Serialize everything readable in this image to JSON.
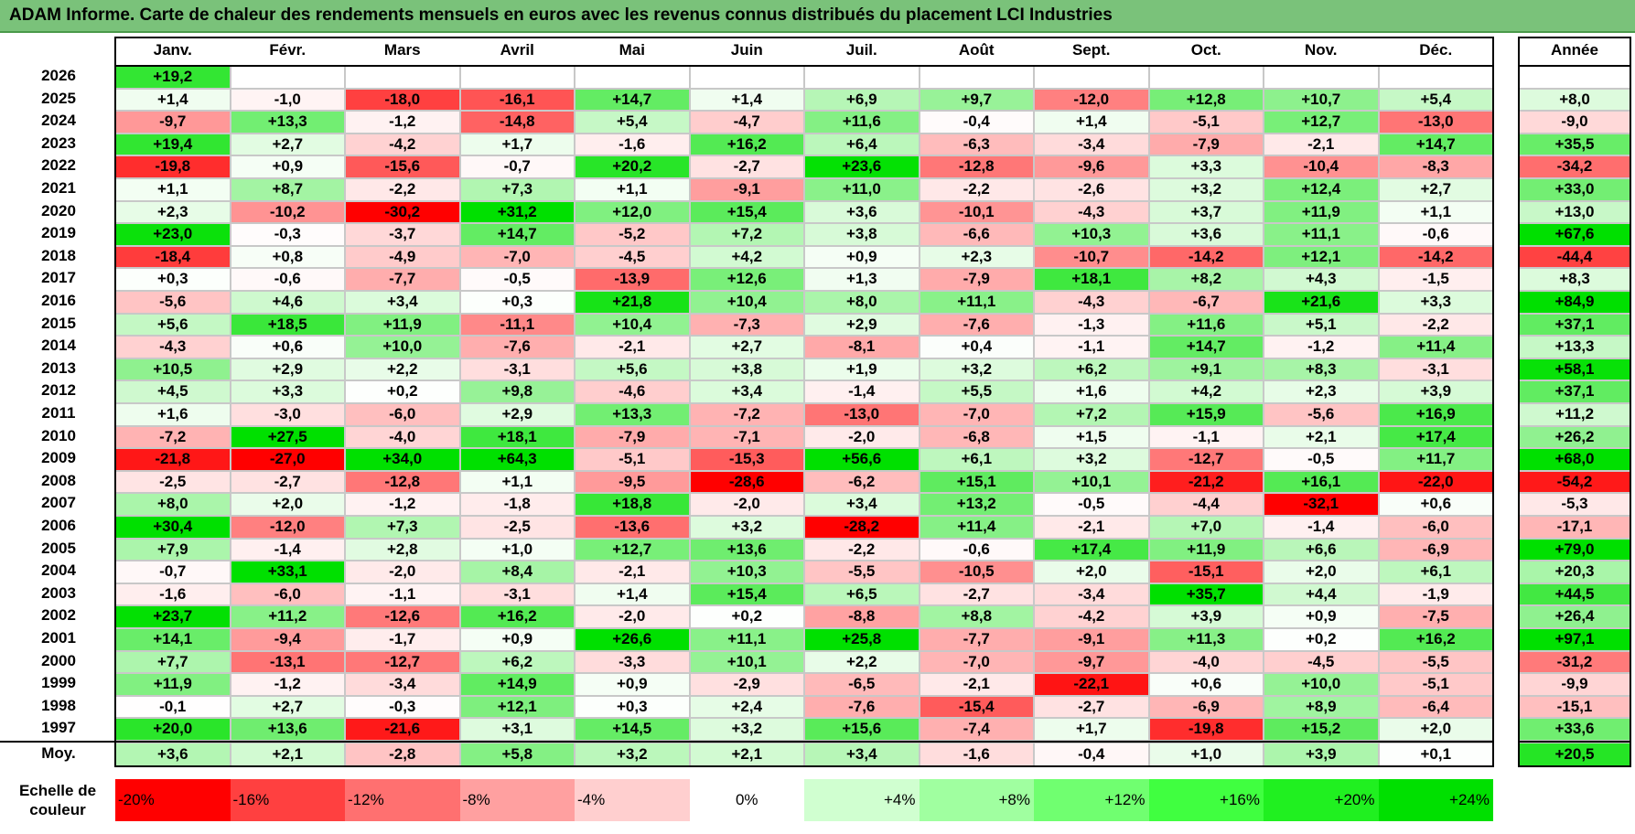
{
  "title": "ADAM Informe. Carte de chaleur des rendements mensuels en euros avec les revenus connus distribués du placement LCI Industries",
  "chart_data": {
    "type": "heatmap",
    "months": [
      "Janv.",
      "Févr.",
      "Mars",
      "Avril",
      "Mai",
      "Juin",
      "Juil.",
      "Août",
      "Sept.",
      "Oct.",
      "Nov.",
      "Déc."
    ],
    "year_header": "Année",
    "rows": [
      {
        "year": "2026",
        "months": [
          "+19,2",
          "",
          "",
          "",
          "",
          "",
          "",
          "",
          "",
          "",
          "",
          ""
        ],
        "annual": ""
      },
      {
        "year": "2025",
        "months": [
          "+1,4",
          "-1,0",
          "-18,0",
          "-16,1",
          "+14,7",
          "+1,4",
          "+6,9",
          "+9,7",
          "-12,0",
          "+12,8",
          "+10,7",
          "+5,4"
        ],
        "annual": "+8,0"
      },
      {
        "year": "2024",
        "months": [
          "-9,7",
          "+13,3",
          "-1,2",
          "-14,8",
          "+5,4",
          "-4,7",
          "+11,6",
          "-0,4",
          "+1,4",
          "-5,1",
          "+12,7",
          "-13,0"
        ],
        "annual": "-9,0"
      },
      {
        "year": "2023",
        "months": [
          "+19,4",
          "+2,7",
          "-4,2",
          "+1,7",
          "-1,6",
          "+16,2",
          "+6,4",
          "-6,3",
          "-3,4",
          "-7,9",
          "-2,1",
          "+14,7"
        ],
        "annual": "+35,5"
      },
      {
        "year": "2022",
        "months": [
          "-19,8",
          "+0,9",
          "-15,6",
          "-0,7",
          "+20,2",
          "-2,7",
          "+23,6",
          "-12,8",
          "-9,6",
          "+3,3",
          "-10,4",
          "-8,3"
        ],
        "annual": "-34,2"
      },
      {
        "year": "2021",
        "months": [
          "+1,1",
          "+8,7",
          "-2,2",
          "+7,3",
          "+1,1",
          "-9,1",
          "+11,0",
          "-2,2",
          "-2,6",
          "+3,2",
          "+12,4",
          "+2,7"
        ],
        "annual": "+33,0"
      },
      {
        "year": "2020",
        "months": [
          "+2,3",
          "-10,2",
          "-30,2",
          "+31,2",
          "+12,0",
          "+15,4",
          "+3,6",
          "-10,1",
          "-4,3",
          "+3,7",
          "+11,9",
          "+1,1"
        ],
        "annual": "+13,0"
      },
      {
        "year": "2019",
        "months": [
          "+23,0",
          "-0,3",
          "-3,7",
          "+14,7",
          "-5,2",
          "+7,2",
          "+3,8",
          "-6,6",
          "+10,3",
          "+3,6",
          "+11,1",
          "-0,6"
        ],
        "annual": "+67,6"
      },
      {
        "year": "2018",
        "months": [
          "-18,4",
          "+0,8",
          "-4,9",
          "-7,0",
          "-4,5",
          "+4,2",
          "+0,9",
          "+2,3",
          "-10,7",
          "-14,2",
          "+12,1",
          "-14,2"
        ],
        "annual": "-44,4"
      },
      {
        "year": "2017",
        "months": [
          "+0,3",
          "-0,6",
          "-7,7",
          "-0,5",
          "-13,9",
          "+12,6",
          "+1,3",
          "-7,9",
          "+18,1",
          "+8,2",
          "+4,3",
          "-1,5"
        ],
        "annual": "+8,3"
      },
      {
        "year": "2016",
        "months": [
          "-5,6",
          "+4,6",
          "+3,4",
          "+0,3",
          "+21,8",
          "+10,4",
          "+8,0",
          "+11,1",
          "-4,3",
          "-6,7",
          "+21,6",
          "+3,3"
        ],
        "annual": "+84,9"
      },
      {
        "year": "2015",
        "months": [
          "+5,6",
          "+18,5",
          "+11,9",
          "-11,1",
          "+10,4",
          "-7,3",
          "+2,9",
          "-7,6",
          "-1,3",
          "+11,6",
          "+5,1",
          "-2,2"
        ],
        "annual": "+37,1"
      },
      {
        "year": "2014",
        "months": [
          "-4,3",
          "+0,6",
          "+10,0",
          "-7,6",
          "-2,1",
          "+2,7",
          "-8,1",
          "+0,4",
          "-1,1",
          "+14,7",
          "-1,2",
          "+11,4"
        ],
        "annual": "+13,3"
      },
      {
        "year": "2013",
        "months": [
          "+10,5",
          "+2,9",
          "+2,2",
          "-3,1",
          "+5,6",
          "+3,8",
          "+1,9",
          "+3,2",
          "+6,2",
          "+9,1",
          "+8,3",
          "-3,1"
        ],
        "annual": "+58,1"
      },
      {
        "year": "2012",
        "months": [
          "+4,5",
          "+3,3",
          "+0,2",
          "+9,8",
          "-4,6",
          "+3,4",
          "-1,4",
          "+5,5",
          "+1,6",
          "+4,2",
          "+2,3",
          "+3,9"
        ],
        "annual": "+37,1"
      },
      {
        "year": "2011",
        "months": [
          "+1,6",
          "-3,0",
          "-6,0",
          "+2,9",
          "+13,3",
          "-7,2",
          "-13,0",
          "-7,0",
          "+7,2",
          "+15,9",
          "-5,6",
          "+16,9"
        ],
        "annual": "+11,2"
      },
      {
        "year": "2010",
        "months": [
          "-7,2",
          "+27,5",
          "-4,0",
          "+18,1",
          "-7,9",
          "-7,1",
          "-2,0",
          "-6,8",
          "+1,5",
          "-1,1",
          "+2,1",
          "+17,4"
        ],
        "annual": "+26,2"
      },
      {
        "year": "2009",
        "months": [
          "-21,8",
          "-27,0",
          "+34,0",
          "+64,3",
          "-5,1",
          "-15,3",
          "+56,6",
          "+6,1",
          "+3,2",
          "-12,7",
          "-0,5",
          "+11,7"
        ],
        "annual": "+68,0"
      },
      {
        "year": "2008",
        "months": [
          "-2,5",
          "-2,7",
          "-12,8",
          "+1,1",
          "-9,5",
          "-28,6",
          "-6,2",
          "+15,1",
          "+10,1",
          "-21,2",
          "+16,1",
          "-22,0"
        ],
        "annual": "-54,2"
      },
      {
        "year": "2007",
        "months": [
          "+8,0",
          "+2,0",
          "-1,2",
          "-1,8",
          "+18,8",
          "-2,0",
          "+3,4",
          "+13,2",
          "-0,5",
          "-4,4",
          "-32,1",
          "+0,6"
        ],
        "annual": "-5,3"
      },
      {
        "year": "2006",
        "months": [
          "+30,4",
          "-12,0",
          "+7,3",
          "-2,5",
          "-13,6",
          "+3,2",
          "-28,2",
          "+11,4",
          "-2,1",
          "+7,0",
          "-1,4",
          "-6,0"
        ],
        "annual": "-17,1"
      },
      {
        "year": "2005",
        "months": [
          "+7,9",
          "-1,4",
          "+2,8",
          "+1,0",
          "+12,7",
          "+13,6",
          "-2,2",
          "-0,6",
          "+17,4",
          "+11,9",
          "+6,6",
          "-6,9"
        ],
        "annual": "+79,0"
      },
      {
        "year": "2004",
        "months": [
          "-0,7",
          "+33,1",
          "-2,0",
          "+8,4",
          "-2,1",
          "+10,3",
          "-5,5",
          "-10,5",
          "+2,0",
          "-15,1",
          "+2,0",
          "+6,1"
        ],
        "annual": "+20,3"
      },
      {
        "year": "2003",
        "months": [
          "-1,6",
          "-6,0",
          "-1,1",
          "-3,1",
          "+1,4",
          "+15,4",
          "+6,5",
          "-2,7",
          "-3,4",
          "+35,7",
          "+4,4",
          "-1,9"
        ],
        "annual": "+44,5"
      },
      {
        "year": "2002",
        "months": [
          "+23,7",
          "+11,2",
          "-12,6",
          "+16,2",
          "-2,0",
          "+0,2",
          "-8,8",
          "+8,8",
          "-4,2",
          "+3,9",
          "+0,9",
          "-7,5"
        ],
        "annual": "+26,4"
      },
      {
        "year": "2001",
        "months": [
          "+14,1",
          "-9,4",
          "-1,7",
          "+0,9",
          "+26,6",
          "+11,1",
          "+25,8",
          "-7,7",
          "-9,1",
          "+11,3",
          "+0,2",
          "+16,2"
        ],
        "annual": "+97,1"
      },
      {
        "year": "2000",
        "months": [
          "+7,7",
          "-13,1",
          "-12,7",
          "+6,2",
          "-3,3",
          "+10,1",
          "+2,2",
          "-7,0",
          "-9,7",
          "-4,0",
          "-4,5",
          "-5,5"
        ],
        "annual": "-31,2"
      },
      {
        "year": "1999",
        "months": [
          "+11,9",
          "-1,2",
          "-3,4",
          "+14,9",
          "+0,9",
          "-2,9",
          "-6,5",
          "-2,1",
          "-22,1",
          "+0,6",
          "+10,0",
          "-5,1"
        ],
        "annual": "-9,9"
      },
      {
        "year": "1998",
        "months": [
          "-0,1",
          "+2,7",
          "-0,3",
          "+12,1",
          "+0,3",
          "+2,4",
          "-7,6",
          "-15,4",
          "-2,7",
          "-6,9",
          "+8,9",
          "-6,4"
        ],
        "annual": "-15,1"
      },
      {
        "year": "1997",
        "months": [
          "+20,0",
          "+13,6",
          "-21,6",
          "+3,1",
          "+14,5",
          "+3,2",
          "+15,6",
          "-7,4",
          "+1,7",
          "-19,8",
          "+15,2",
          "+2,0"
        ],
        "annual": "+33,6"
      }
    ],
    "average": {
      "label": "Moy.",
      "months": [
        "+3,6",
        "+2,1",
        "-2,8",
        "+5,8",
        "+3,2",
        "+2,1",
        "+3,4",
        "-1,6",
        "-0,4",
        "+1,0",
        "+3,9",
        "+0,1"
      ],
      "annual": "+20,5"
    },
    "scale": {
      "label": "Echelle de couleur",
      "steps": [
        {
          "text": "-20%",
          "color": "#ff0000"
        },
        {
          "text": "-16%",
          "color": "#ff4040"
        },
        {
          "text": "-12%",
          "color": "#ff7070"
        },
        {
          "text": "-8%",
          "color": "#ffa0a0"
        },
        {
          "text": "-4%",
          "color": "#ffcfcf"
        },
        {
          "text": "0%",
          "color": "#ffffff"
        },
        {
          "text": "+4%",
          "color": "#d0ffd0"
        },
        {
          "text": "+8%",
          "color": "#a0ffa0"
        },
        {
          "text": "+12%",
          "color": "#70ff70"
        },
        {
          "text": "+16%",
          "color": "#40ff40"
        },
        {
          "text": "+20%",
          "color": "#20f020"
        },
        {
          "text": "+24%",
          "color": "#00e000"
        }
      ]
    }
  }
}
